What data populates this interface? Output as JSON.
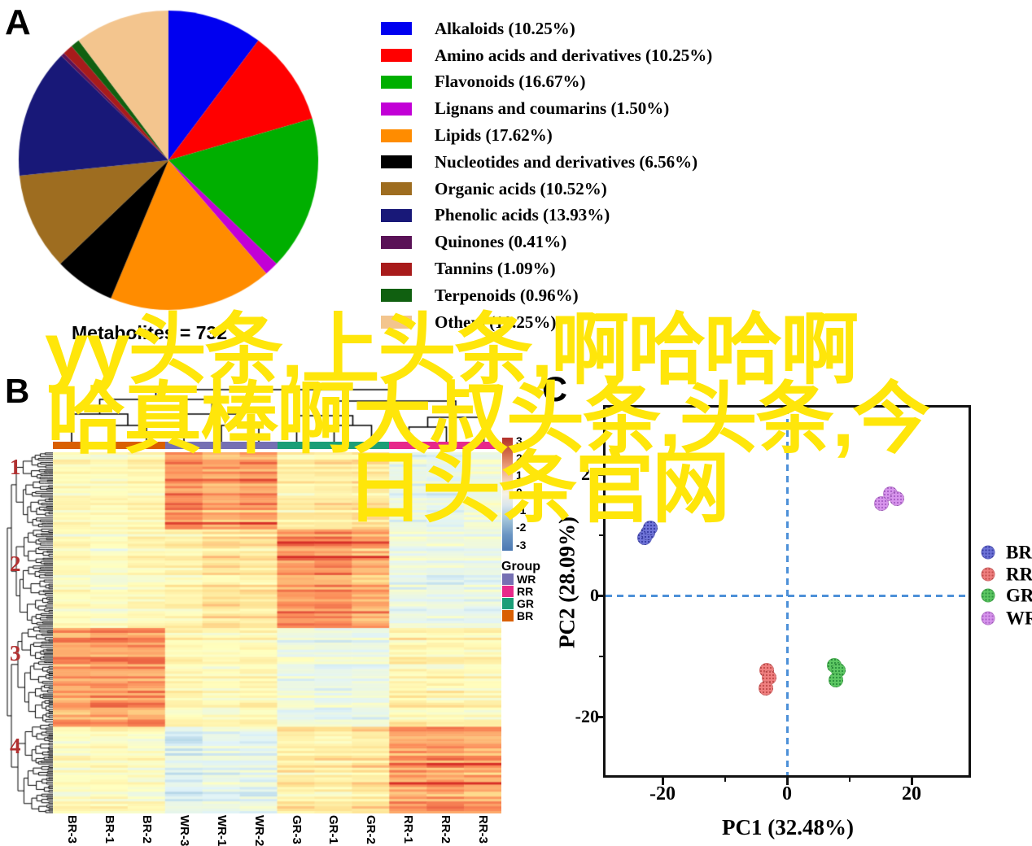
{
  "figure": {
    "panel_a_label": "A",
    "panel_b_label": "B",
    "panel_c_label": "C",
    "watermark": {
      "line1": "yy头条,上头条,啊哈哈啊",
      "line2": "哈真棒啊大叔头条,头条,今",
      "line3": "日头条官网",
      "color": "#FFE60A"
    }
  },
  "chart_data": [
    {
      "type": "pie",
      "title": "Metabolites = 732",
      "labels": [
        "Alkaloids",
        "Amino acids and derivatives",
        "Flavonoids",
        "Lignans and coumarins",
        "Lipids",
        "Nucleotides and derivatives",
        "Organic acids",
        "Phenolic acids",
        "Quinones",
        "Tannins",
        "Terpenoids",
        "Others"
      ],
      "values": [
        10.25,
        10.25,
        16.67,
        1.5,
        17.62,
        6.56,
        10.52,
        13.93,
        0.41,
        1.09,
        0.96,
        10.25
      ],
      "legend_labels": [
        "Alkaloids (10.25%)",
        "Amino acids and derivatives (10.25%)",
        "Flavonoids (16.67%)",
        "Lignans and coumarins (1.50%)",
        "Lipids (17.62%)",
        "Nucleotides and derivatives (6.56%)",
        "Organic acids (10.52%)",
        "Phenolic acids (13.93%)",
        "Quinones (0.41%)",
        "Tannins (1.09%)",
        "Terpenoids (0.96%)",
        "Others (10.25%)"
      ],
      "colors": [
        "#0000F0",
        "#FF0000",
        "#00AF00",
        "#C200D6",
        "#FF8C00",
        "#000000",
        "#9E6D20",
        "#181878",
        "#5A1257",
        "#A81B1B",
        "#106010",
        "#F3C58E"
      ],
      "start_angle_deg": 0,
      "direction": "clockwise",
      "legend_position": "right"
    },
    {
      "type": "heatmap",
      "columns": [
        "BR-3",
        "BR-1",
        "BR-2",
        "WR-3",
        "WR-1",
        "WR-2",
        "GR-3",
        "GR-1",
        "GR-2",
        "RR-1",
        "RR-2",
        "RR-3"
      ],
      "column_groups": [
        "BR",
        "BR",
        "BR",
        "WR",
        "WR",
        "WR",
        "GR",
        "GR",
        "GR",
        "RR",
        "RR",
        "RR"
      ],
      "group_colors": {
        "BR": "#D95F02",
        "WR": "#7570B3",
        "GR": "#1B9E77",
        "RR": "#E7298A"
      },
      "group_legend_title": "Group",
      "group_legend_order": [
        "WR",
        "RR",
        "GR",
        "BR"
      ],
      "row_clusters": [
        {
          "label": "1",
          "fraction": 0.21,
          "hot_groups": [
            "WR"
          ],
          "warm_groups": [
            "GR"
          ],
          "cool_groups": [
            "RR"
          ]
        },
        {
          "label": "2",
          "fraction": 0.27,
          "hot_groups": [
            "GR"
          ],
          "warm_groups": [
            "WR"
          ],
          "cool_groups": [
            "RR"
          ]
        },
        {
          "label": "3",
          "fraction": 0.27,
          "hot_groups": [
            "BR"
          ],
          "warm_groups": [
            "RR"
          ],
          "cool_groups": [
            "GR"
          ]
        },
        {
          "label": "4",
          "fraction": 0.25,
          "hot_groups": [
            "RR"
          ],
          "warm_groups": [
            "GR"
          ],
          "cool_groups": [
            "WR"
          ]
        }
      ],
      "cluster_label_color": "#B03030",
      "scale_ticks": [
        "3",
        "2",
        "1",
        "0",
        "-1",
        "-2",
        "-3"
      ],
      "colormap_stops": [
        "#4575B4",
        "#91BFDB",
        "#E0F3F8",
        "#FFFFBF",
        "#FEE090",
        "#FC8D59",
        "#D73027"
      ],
      "n_rows": 150
    },
    {
      "type": "scatter",
      "xlabel": "PC1 (32.48%)",
      "ylabel": "PC2 (28.09%)",
      "x_ticks": [
        "-20",
        "0",
        "20"
      ],
      "y_ticks": [
        "20",
        "0",
        "-20"
      ],
      "x_tick_values": [
        -20,
        0,
        20
      ],
      "y_tick_values": [
        20,
        0,
        -20
      ],
      "x_minor_tick_values": [
        -10,
        10
      ],
      "y_minor_tick_values": [
        10,
        -10
      ],
      "xlim": [
        -29.3,
        29.8
      ],
      "ylim": [
        -30.1,
        31.1
      ],
      "crosshair": {
        "x": 0,
        "y": 0,
        "style": "dashed",
        "color": "#4D90D8"
      },
      "series": [
        {
          "name": "BR",
          "color": "#6F74D8",
          "dot_color": "#3C41A8",
          "points": [
            [
              -22.9,
              9.5
            ],
            [
              -22.3,
              10.4
            ],
            [
              -21.9,
              11.1
            ]
          ]
        },
        {
          "name": "RR",
          "color": "#F08080",
          "dot_color": "#C4504F",
          "points": [
            [
              -3.3,
              -12.4
            ],
            [
              -2.9,
              -13.6
            ],
            [
              -3.4,
              -15.3
            ]
          ]
        },
        {
          "name": "GR",
          "color": "#5DC863",
          "dot_color": "#2F9440",
          "points": [
            [
              7.6,
              -11.6
            ],
            [
              8.3,
              -12.4
            ],
            [
              7.9,
              -13.9
            ]
          ]
        },
        {
          "name": "WR",
          "color": "#D795EC",
          "dot_color": "#AC63C9",
          "points": [
            [
              15.2,
              15.2
            ],
            [
              16.6,
              16.8
            ],
            [
              17.6,
              16.0
            ]
          ]
        }
      ],
      "legend_order": [
        "BR",
        "RR",
        "GR",
        "WR"
      ],
      "legend_position": "right"
    }
  ]
}
